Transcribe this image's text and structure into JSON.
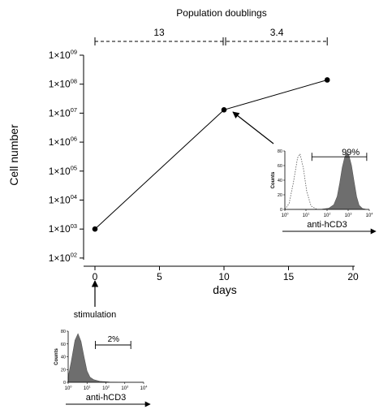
{
  "chart_data": {
    "type": "line",
    "ylabel": "Cell number",
    "xlabel": "days",
    "xlim": [
      -1,
      20
    ],
    "ylim_log10": [
      2,
      9
    ],
    "y_scale": "log",
    "x_ticks": [
      "0",
      "5",
      "10",
      "15",
      "20"
    ],
    "y_ticks": [
      {
        "base": "1×10",
        "exp": "02"
      },
      {
        "base": "1×10",
        "exp": "03"
      },
      {
        "base": "1×10",
        "exp": "04"
      },
      {
        "base": "1×10",
        "exp": "05"
      },
      {
        "base": "1×10",
        "exp": "06"
      },
      {
        "base": "1×10",
        "exp": "07"
      },
      {
        "base": "1×10",
        "exp": "08"
      },
      {
        "base": "1×10",
        "exp": "09"
      }
    ],
    "series": [
      {
        "x": [
          0,
          10,
          18
        ],
        "y": [
          1000,
          13000000,
          140000000
        ]
      }
    ],
    "population_doublings": {
      "title": "Population doublings",
      "segments": [
        {
          "from_day": 0,
          "to_day": 10,
          "label": "13"
        },
        {
          "from_day": 10,
          "to_day": 18,
          "label": "3.4"
        }
      ]
    },
    "annotations": {
      "stimulation_label": "stimulation",
      "stimulation_day": 0
    },
    "insets": [
      {
        "position": "right",
        "xlabel": "anti-hCD3",
        "ylabel": "Counts",
        "percent": "99%",
        "y_ticks": [
          "0",
          "20",
          "40",
          "60",
          "80"
        ],
        "x_ticks": [
          {
            "base": "10",
            "exp": "0"
          },
          {
            "base": "10",
            "exp": "1"
          },
          {
            "base": "10",
            "exp": "2"
          },
          {
            "base": "10",
            "exp": "3"
          },
          {
            "base": "10",
            "exp": "4"
          }
        ]
      },
      {
        "position": "bottom-left",
        "xlabel": "anti-hCD3",
        "ylabel": "Counts",
        "percent": "2%",
        "y_ticks": [
          "0",
          "20",
          "40",
          "60",
          "80"
        ],
        "x_ticks": [
          {
            "base": "10",
            "exp": "0"
          },
          {
            "base": "10",
            "exp": "1"
          },
          {
            "base": "10",
            "exp": "2"
          },
          {
            "base": "10",
            "exp": "3"
          },
          {
            "base": "10",
            "exp": "4"
          }
        ]
      }
    ]
  }
}
